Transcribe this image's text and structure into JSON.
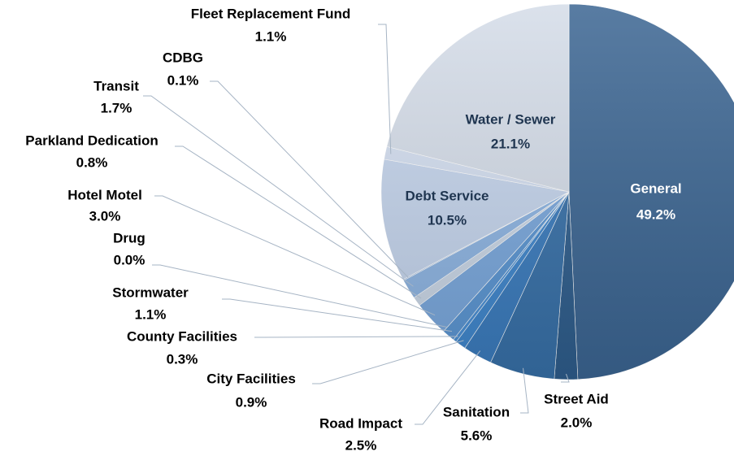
{
  "chart_data": {
    "type": "pie",
    "categories": [
      "General",
      "Street Aid",
      "Sanitation",
      "Road Impact",
      "City Facilities",
      "County Facilities",
      "Stormwater",
      "Drug",
      "Hotel Motel",
      "Parkland Dedication",
      "Transit",
      "CDBG",
      "Debt Service",
      "Fleet Replacement Fund",
      "Water / Sewer"
    ],
    "values": [
      49.2,
      2.0,
      5.6,
      2.5,
      0.9,
      0.3,
      1.1,
      0.0,
      3.0,
      0.8,
      1.7,
      0.1,
      10.5,
      1.1,
      21.1
    ],
    "value_labels": [
      "49.2%",
      "2.0%",
      "5.6%",
      "2.5%",
      "0.9%",
      "0.3%",
      "1.1%",
      "0.0%",
      "3.0%",
      "0.8%",
      "1.7%",
      "0.1%",
      "10.5%",
      "1.1%",
      "21.1%"
    ],
    "colors": [
      "#3b6592",
      "#2e5d8c",
      "#3770a8",
      "#3a7bbd",
      "#3f86cc",
      "#4a8fd4",
      "#5a95d2",
      "#6a9fd8",
      "#79a7dc",
      "#c9d6e6",
      "#8db4e2",
      "#a6c2e6",
      "#c4d4ec",
      "#d3def0",
      "#d4dce8"
    ]
  }
}
